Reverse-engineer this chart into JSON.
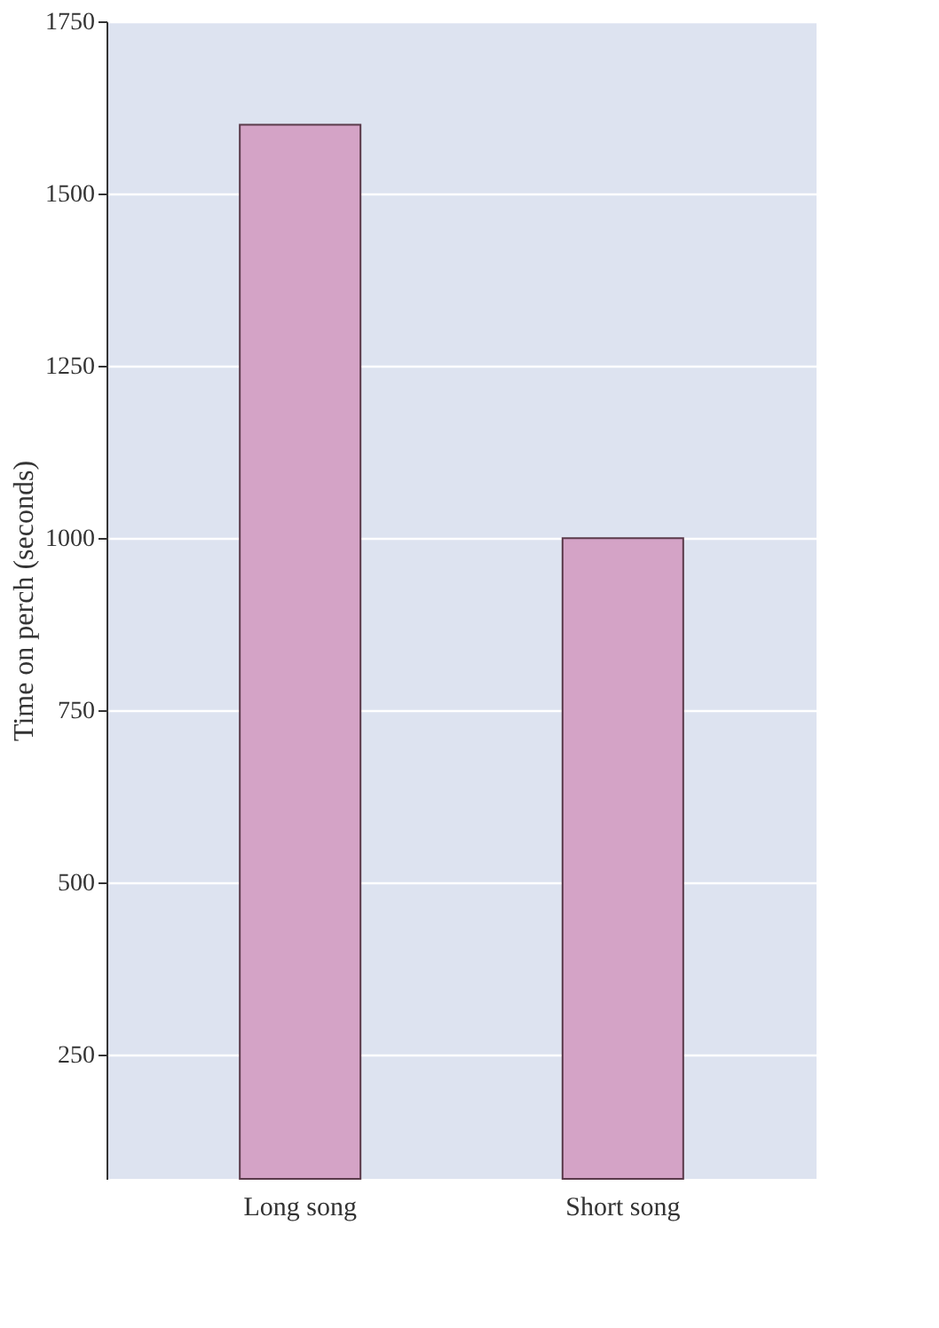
{
  "chart_data": {
    "type": "bar",
    "ylabel": "Time on perch (seconds)",
    "categories": [
      "Long song",
      "Short song"
    ],
    "series": [
      {
        "color": "#d4a3c6",
        "values": [
          1600,
          1000
        ]
      }
    ],
    "ylim": [
      70,
      1750
    ],
    "yticks": [
      250,
      500,
      750,
      1000,
      1250,
      1500,
      1750
    ],
    "grid": "y"
  }
}
